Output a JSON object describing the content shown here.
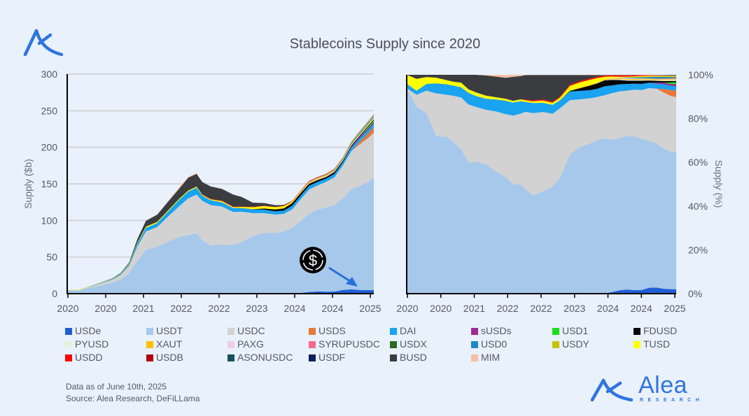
{
  "title": "Stablecoins Supply since 2020",
  "footer": {
    "date_note": "Data as of June 10th, 2025",
    "source": "Source: Alea Research, DeFiLLama"
  },
  "brand": {
    "name": "Alea",
    "sub": "RESEARCH"
  },
  "icons": {
    "top_logo": "alea-logo-icon",
    "bottom_logo": "alea-research-logo-icon",
    "annotation": "usdc-dollar-coin-icon"
  },
  "colors": {
    "background": "#e8f1fc",
    "USDe": "#1f5fd6",
    "USDT": "#a6c8ea",
    "USDC": "#d2d2d2",
    "USDS": "#e8783a",
    "DAI": "#1aa3f0",
    "sUSDs": "#9b2a94",
    "USD1": "#18e018",
    "FDUSD": "#050505",
    "PYUSD": "#e4f2d9",
    "XAUT": "#ffc000",
    "PAXG": "#f0cde6",
    "SYRUPUSDC": "#f56a8c",
    "USDX": "#2e6a22",
    "USD0": "#1f88c2",
    "USDY": "#c8c400",
    "TUSD": "#ffff00",
    "USDD": "#ff0000",
    "USDB": "#b00010",
    "ASONUSDC": "#154f60",
    "USDF": "#0a1f5c",
    "BUSD": "#3a3c40",
    "MIM": "#f7c0a4"
  },
  "chart_data": [
    {
      "type": "area",
      "stacked": true,
      "title": "Stablecoins Supply since 2020",
      "xlabel": "",
      "ylabel": "Supply ($b)",
      "ylim": [
        0,
        300
      ],
      "yticks": [
        0,
        50,
        100,
        150,
        200,
        250,
        300
      ],
      "xlim": [
        2020.0,
        2025.45
      ],
      "xtick_labels": [
        "2020",
        "2020",
        "2021",
        "2022",
        "2022",
        "2023",
        "2024",
        "2024",
        "2025"
      ],
      "grid": true,
      "legend": "bottom",
      "x": [
        2020.0,
        2020.2,
        2020.4,
        2020.6,
        2020.8,
        2020.95,
        2021.1,
        2021.25,
        2021.4,
        2021.6,
        2021.8,
        2022.0,
        2022.15,
        2022.3,
        2022.4,
        2022.55,
        2022.75,
        2022.95,
        2023.1,
        2023.3,
        2023.5,
        2023.7,
        2023.85,
        2024.0,
        2024.15,
        2024.3,
        2024.45,
        2024.6,
        2024.75,
        2024.9,
        2025.05,
        2025.2,
        2025.35,
        2025.45
      ],
      "series": [
        {
          "name": "USDe",
          "values": [
            0,
            0,
            0,
            0,
            0,
            0,
            0,
            0,
            0,
            0,
            0,
            0,
            0,
            0,
            0,
            0,
            0,
            0,
            0,
            0,
            0,
            0,
            0,
            0.1,
            1.0,
            2.3,
            3.0,
            2.6,
            2.9,
            5.0,
            5.8,
            5.0,
            4.8,
            5.0
          ]
        },
        {
          "name": "USDT",
          "values": [
            4.6,
            4.7,
            8.0,
            11.0,
            15.0,
            19.5,
            28.0,
            45.0,
            60.0,
            64.0,
            71.0,
            78.0,
            80.0,
            82.5,
            73.0,
            66.0,
            67.0,
            66.5,
            70.0,
            79.0,
            83.0,
            83.0,
            85.0,
            90.0,
            98.0,
            107.0,
            112.0,
            115.0,
            118.0,
            125.0,
            137.0,
            142.0,
            148.0,
            153.0
          ]
        },
        {
          "name": "USDC",
          "values": [
            0,
            0.3,
            1.0,
            3.0,
            4.0,
            6.0,
            10.0,
            20.0,
            25.0,
            27.0,
            35.0,
            42.0,
            50.0,
            53.0,
            54.0,
            55.0,
            52.0,
            45.0,
            42.0,
            31.0,
            27.0,
            25.0,
            24.0,
            25.0,
            30.0,
            33.0,
            33.0,
            35.0,
            38.0,
            45.0,
            52.0,
            57.0,
            60.0,
            62.0
          ]
        },
        {
          "name": "USDS",
          "values": [
            0,
            0,
            0,
            0,
            0,
            0,
            0,
            0,
            0,
            0,
            0,
            0,
            0,
            0,
            0,
            0,
            0,
            0,
            0,
            0,
            0,
            0,
            0,
            0,
            0,
            0,
            0,
            0,
            0,
            0,
            0,
            3.5,
            6.5,
            7.5
          ]
        },
        {
          "name": "DAI",
          "values": [
            0.1,
            0.1,
            0.3,
            0.7,
            1.0,
            1.3,
            2.0,
            4.0,
            5.0,
            5.5,
            7.0,
            9.0,
            9.5,
            9.5,
            7.0,
            6.8,
            6.0,
            5.5,
            5.0,
            5.0,
            4.8,
            4.5,
            4.5,
            5.2,
            5.0,
            5.0,
            4.8,
            4.5,
            4.8,
            4.5,
            4.8,
            5.0,
            4.6,
            4.5
          ]
        },
        {
          "name": "sUSDs",
          "values": [
            0,
            0,
            0,
            0,
            0,
            0,
            0,
            0,
            0,
            0,
            0,
            0,
            0,
            0,
            0,
            0,
            0,
            0,
            0,
            0,
            0,
            0,
            0,
            0,
            0,
            0,
            0,
            0,
            0,
            0,
            0.8,
            1.5,
            2.0,
            2.5
          ]
        },
        {
          "name": "USD1",
          "values": [
            0,
            0,
            0,
            0,
            0,
            0,
            0,
            0,
            0,
            0,
            0,
            0,
            0,
            0,
            0,
            0,
            0,
            0,
            0,
            0,
            0,
            0,
            0,
            0,
            0,
            0,
            0,
            0,
            0,
            0,
            0,
            0,
            1.8,
            2.2
          ]
        },
        {
          "name": "FDUSD",
          "values": [
            0,
            0,
            0,
            0,
            0,
            0,
            0,
            0,
            0,
            0,
            0,
            0,
            0,
            0,
            0,
            0,
            0,
            0,
            0,
            0.3,
            1.5,
            2.5,
            3.0,
            3.5,
            3.5,
            3.0,
            2.5,
            2.2,
            2.5,
            2.0,
            1.8,
            1.6,
            1.5,
            1.4
          ]
        },
        {
          "name": "PYUSD",
          "values": [
            0,
            0,
            0,
            0,
            0,
            0,
            0,
            0,
            0,
            0,
            0,
            0,
            0,
            0,
            0,
            0,
            0,
            0,
            0,
            0,
            0,
            0,
            0.1,
            0.2,
            0.4,
            0.5,
            0.7,
            0.7,
            0.6,
            0.5,
            0.5,
            0.8,
            0.9,
            0.9
          ]
        },
        {
          "name": "XAUT",
          "values": [
            0,
            0,
            0,
            0,
            0,
            0,
            0,
            0,
            0,
            0,
            0,
            0,
            0,
            0,
            0,
            0,
            0,
            0,
            0,
            0,
            0.3,
            0.3,
            0.4,
            0.4,
            0.5,
            0.6,
            0.6,
            0.6,
            0.6,
            0.7,
            0.8,
            0.8,
            0.8,
            0.8
          ]
        },
        {
          "name": "PAXG",
          "values": [
            0,
            0,
            0,
            0,
            0,
            0,
            0,
            0,
            0,
            0,
            0,
            0,
            0,
            0,
            0,
            0,
            0,
            0,
            0,
            0,
            0,
            0,
            0,
            0,
            0.4,
            0.4,
            0.5,
            0.5,
            0.5,
            0.5,
            0.6,
            0.7,
            0.8,
            0.8
          ]
        },
        {
          "name": "SYRUPUSDC",
          "values": [
            0,
            0,
            0,
            0,
            0,
            0,
            0,
            0,
            0,
            0,
            0,
            0,
            0,
            0,
            0,
            0,
            0,
            0,
            0,
            0,
            0,
            0,
            0,
            0,
            0,
            0,
            0,
            0,
            0,
            0,
            0.1,
            0.2,
            0.3,
            0.4
          ]
        },
        {
          "name": "USDX",
          "values": [
            0,
            0,
            0,
            0,
            0,
            0,
            0,
            0,
            0,
            0,
            0,
            0,
            0,
            0,
            0,
            0,
            0,
            0,
            0,
            0,
            0,
            0,
            0,
            0,
            0,
            0,
            0,
            0,
            0.2,
            0.3,
            0.5,
            0.6,
            0.6,
            0.5
          ]
        },
        {
          "name": "USD0",
          "values": [
            0,
            0,
            0,
            0,
            0,
            0,
            0,
            0,
            0,
            0,
            0,
            0,
            0,
            0,
            0,
            0,
            0,
            0,
            0,
            0,
            0,
            0,
            0,
            0,
            0,
            0.1,
            0.3,
            0.5,
            0.8,
            1.0,
            1.3,
            1.2,
            1.0,
            0.9
          ]
        },
        {
          "name": "USDY",
          "values": [
            0,
            0,
            0,
            0,
            0,
            0,
            0,
            0,
            0,
            0,
            0,
            0,
            0,
            0,
            0,
            0,
            0,
            0,
            0,
            0,
            0,
            0,
            0,
            0,
            0.1,
            0.2,
            0.3,
            0.4,
            0.4,
            0.5,
            0.5,
            0.6,
            0.6,
            0.6
          ]
        },
        {
          "name": "TUSD",
          "values": [
            0.2,
            0.3,
            0.3,
            0.4,
            0.4,
            0.5,
            0.9,
            1.2,
            1.6,
            1.5,
            1.3,
            1.3,
            1.3,
            1.3,
            1.1,
            1.1,
            1.5,
            1.3,
            1.5,
            2.8,
            3.0,
            2.9,
            2.5,
            1.5,
            0.8,
            0.5,
            0.5,
            0.5,
            0.5,
            0.5,
            0.5,
            0.5,
            0.5,
            0.5
          ]
        },
        {
          "name": "USDD",
          "values": [
            0,
            0,
            0,
            0,
            0,
            0,
            0,
            0,
            0,
            0,
            0,
            0,
            0,
            0,
            0.6,
            0.7,
            0.7,
            0.7,
            0.7,
            0.7,
            0.7,
            0.7,
            0.7,
            0.7,
            0.7,
            0.7,
            0.7,
            0.7,
            0.6,
            0.5,
            0.4,
            0.3,
            0.3,
            0.3
          ]
        },
        {
          "name": "USDB",
          "values": [
            0,
            0,
            0,
            0,
            0,
            0,
            0,
            0,
            0,
            0,
            0,
            0,
            0,
            0,
            0,
            0,
            0,
            0,
            0,
            0,
            0,
            0,
            0,
            0,
            0.2,
            0.5,
            0.4,
            0.3,
            0.2,
            0.1,
            0.1,
            0.1,
            0.1,
            0.1
          ]
        },
        {
          "name": "ASONUSDC",
          "values": [
            0,
            0,
            0,
            0,
            0,
            0,
            0,
            0,
            0,
            0,
            0,
            0,
            0,
            0,
            0,
            0,
            0,
            0,
            0,
            0,
            0,
            0,
            0,
            0,
            0,
            0,
            0,
            0,
            0,
            0,
            0.2,
            0.4,
            0.4,
            0.4
          ]
        },
        {
          "name": "USDF",
          "values": [
            0,
            0,
            0,
            0,
            0,
            0,
            0,
            0,
            0,
            0,
            0,
            0,
            0,
            0,
            0,
            0,
            0,
            0,
            0,
            0,
            0,
            0,
            0,
            0,
            0,
            0,
            0,
            0,
            0,
            0,
            0,
            0,
            0.2,
            0.4
          ]
        },
        {
          "name": "BUSD",
          "values": [
            0,
            0.1,
            0.1,
            0.2,
            0.5,
            0.9,
            1.5,
            5.0,
            8.0,
            10.0,
            12.0,
            14.0,
            17.5,
            17.5,
            17.0,
            17.0,
            16.0,
            16.5,
            13.0,
            5.5,
            3.5,
            2.0,
            1.0,
            0.3,
            0.1,
            0.1,
            0.1,
            0.1,
            0.1,
            0.1,
            0.1,
            0.1,
            0.1,
            0.1
          ]
        },
        {
          "name": "MIM",
          "values": [
            0,
            0,
            0,
            0,
            0,
            0,
            0,
            0,
            0,
            0.3,
            1.0,
            2.0,
            1.5,
            1.0,
            0.2,
            0.1,
            0.1,
            0.1,
            0.1,
            0.1,
            0.1,
            0.1,
            0.1,
            0.1,
            0.1,
            0.1,
            0.1,
            0.1,
            0.1,
            0.1,
            0.1,
            0.1,
            0.1,
            0.1
          ]
        }
      ],
      "annotation": {
        "icon": "usdc-dollar-coin-icon",
        "points_to": "USDe"
      }
    },
    {
      "type": "area",
      "stacked": true,
      "normalized": true,
      "xlabel": "",
      "ylabel": "Supply (%)",
      "ylim": [
        0,
        100
      ],
      "yticks": [
        0,
        20,
        40,
        60,
        80,
        100
      ],
      "ytick_format": "percent",
      "xlim": [
        2020.0,
        2025.45
      ],
      "xtick_labels": [
        "2020",
        "2020",
        "2021",
        "2022",
        "2022",
        "2023",
        "2024",
        "2024",
        "2025"
      ],
      "grid": false,
      "source": "same series as left chart, expressed as share of total"
    }
  ]
}
